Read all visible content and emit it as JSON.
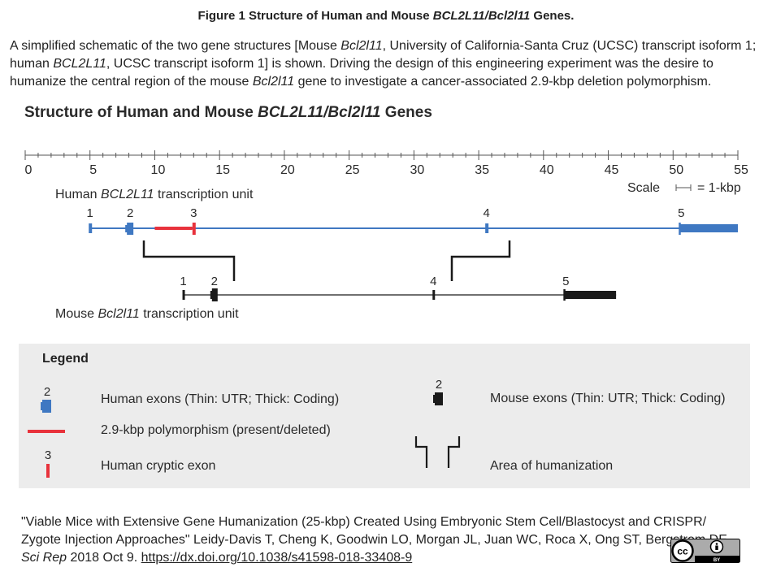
{
  "figure_title": {
    "prefix": "Figure 1 Structure of Human and Mouse ",
    "genes": "BCL2L11/Bcl2l11",
    "suffix": " Genes."
  },
  "caption": {
    "p1": "A simplified schematic of the two gene structures [Mouse ",
    "mouse_gene": "Bcl2l11",
    "p2": ", University of California-Santa Cruz (UCSC) transcript isoform 1; human ",
    "human_gene": "BCL2L11",
    "p3": ", UCSC transcript isoform 1] is shown. Driving the design of this engineering experiment was the desire to humanize the central region of the mouse ",
    "mouse_gene_2": "Bcl2l11",
    "p4": " gene to investigate a cancer-associated 2.9-kbp deletion polymorphism."
  },
  "diagram": {
    "title_prefix": "Structure of Human and Mouse ",
    "title_genes": "BCL2L11/Bcl2l11",
    "title_suffix": " Genes",
    "ruler": {
      "min": 0,
      "max": 55,
      "major_step": 5,
      "minor_step": 1,
      "labels": [
        "0",
        "5",
        "10",
        "15",
        "20",
        "25",
        "30",
        "35",
        "40",
        "45",
        "50",
        "55"
      ]
    },
    "scale_label": "Scale",
    "scale_value": "= 1-kbp",
    "human": {
      "label_prefix": "Human ",
      "label_gene": "BCL2L11",
      "label_suffix": " transcription unit",
      "start_kbp": 5.0,
      "end_kbp": 55.0,
      "exons": [
        {
          "num": "1",
          "kbp": 5.0,
          "type": "utr"
        },
        {
          "num": "2",
          "kbp": 8.1,
          "type": "coding"
        },
        {
          "num": "3",
          "kbp": 13.0,
          "type": "cryptic"
        },
        {
          "num": "4",
          "kbp": 35.6,
          "type": "utr"
        },
        {
          "num": "5",
          "kbp": 50.5,
          "type": "coding_end",
          "end_kbp": 55.0
        }
      ],
      "polymorphism": {
        "start_kbp": 10.0,
        "end_kbp": 12.9,
        "length_kbp": 2.9
      }
    },
    "mouse": {
      "label_prefix": "Mouse ",
      "label_gene": "Bcl2l11",
      "label_suffix": " transcription unit",
      "start_kbp": 12.2,
      "end_kbp": 45.6,
      "exons": [
        {
          "num": "1",
          "kbp": 12.2,
          "type": "utr"
        },
        {
          "num": "2",
          "kbp": 14.6,
          "type": "coding"
        },
        {
          "num": "4",
          "kbp": 31.5,
          "type": "utr"
        },
        {
          "num": "5",
          "kbp": 41.6,
          "type": "coding_end",
          "end_kbp": 45.6
        }
      ]
    }
  },
  "legend": {
    "title": "Legend",
    "items": [
      {
        "marker_num": "2",
        "text": "Human exons (Thin: UTR; Thick: Coding)"
      },
      {
        "marker_num": "",
        "text": "2.9-kbp polymorphism (present/deleted)"
      },
      {
        "marker_num": "3",
        "text": "Human cryptic exon"
      },
      {
        "marker_num": "2",
        "text": "Mouse exons (Thin: UTR; Thick: Coding)"
      },
      {
        "marker_num": "",
        "text": "Area of humanization"
      }
    ]
  },
  "citation": {
    "line": "\"Viable Mice with Extensive Gene Humanization (25-kbp) Created Using Embryonic Stem Cell/Blastocyst and CRISPR/ Zygote Injection Approaches\" Leidy-Davis T, Cheng K, Goodwin LO, Morgan JL, Juan WC, Roca X, Ong ST, Bergstrom DE. ",
    "journal": "Sci Rep",
    "date": " 2018 Oct 9. ",
    "doi": "https://dx.doi.org/10.1038/s41598-018-33408-9"
  },
  "license_badge": {
    "cc": "cc",
    "by": "BY"
  },
  "colors": {
    "human": "#3f78c2",
    "mouse": "#1a1a1a",
    "polymorphism": "#e8323c",
    "legend_bg": "#ececec",
    "ruler": "#555555"
  }
}
